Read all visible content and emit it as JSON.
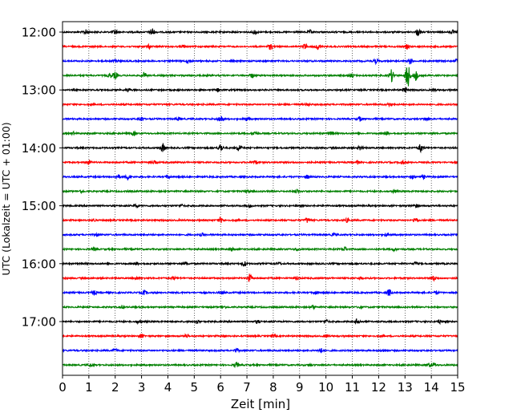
{
  "chart_data": {
    "type": "line",
    "title": "",
    "xlabel": "Zeit  [min]",
    "ylabel": "UTC (Lokalzeit = UTC + 01:00)",
    "xlim": [
      0,
      15
    ],
    "x_ticks": [
      "0",
      "1",
      "2",
      "3",
      "4",
      "5",
      "6",
      "7",
      "8",
      "9",
      "10",
      "11",
      "12",
      "13",
      "14",
      "15"
    ],
    "y_tick_labels": [
      "12:00",
      "13:00",
      "14:00",
      "15:00",
      "16:00",
      "17:00"
    ],
    "row_interval_minutes": 15,
    "grid": "vertical dotted at each minute",
    "color_cycle": [
      "#000000",
      "#ff0000",
      "#0000ff",
      "#008000"
    ],
    "series": [
      {
        "name": "12:00",
        "color": "#000000",
        "events": [
          [
            0.9,
            0.5
          ],
          [
            2.0,
            0.5
          ],
          [
            3.4,
            1.0
          ],
          [
            7.3,
            0.6
          ],
          [
            9.4,
            0.4
          ],
          [
            13.5,
            0.8
          ],
          [
            14.8,
            0.4
          ]
        ]
      },
      {
        "name": "12:15",
        "color": "#ff0000",
        "events": [
          [
            3.3,
            0.4
          ],
          [
            4.6,
            0.3
          ],
          [
            7.9,
            0.7
          ],
          [
            9.2,
            0.6
          ],
          [
            9.7,
            0.6
          ],
          [
            13.1,
            0.5
          ]
        ]
      },
      {
        "name": "12:30",
        "color": "#0000ff",
        "events": [
          [
            2.0,
            0.6
          ],
          [
            4.8,
            0.5
          ],
          [
            11.9,
            0.5
          ],
          [
            13.2,
            0.7
          ],
          [
            15.0,
            0.6
          ]
        ]
      },
      {
        "name": "12:45",
        "color": "#008000",
        "events": [
          [
            1.8,
            0.5
          ],
          [
            2.0,
            0.8
          ],
          [
            3.1,
            0.7
          ],
          [
            7.2,
            0.5
          ],
          [
            11.0,
            0.4
          ],
          [
            12.5,
            1.4
          ],
          [
            13.1,
            3.2
          ],
          [
            13.4,
            1.2
          ]
        ]
      },
      {
        "name": "13:00",
        "color": "#000000",
        "events": [
          [
            2.5,
            0.4
          ],
          [
            5.9,
            0.3
          ],
          [
            13.0,
            0.7
          ],
          [
            14.1,
            0.3
          ]
        ]
      },
      {
        "name": "13:15",
        "color": "#ff0000",
        "events": [
          [
            9.3,
            0.4
          ],
          [
            12.4,
            0.3
          ]
        ]
      },
      {
        "name": "13:30",
        "color": "#0000ff",
        "events": [
          [
            3.0,
            0.5
          ],
          [
            4.4,
            0.4
          ],
          [
            6.0,
            0.8
          ],
          [
            7.0,
            0.5
          ],
          [
            11.3,
            0.5
          ],
          [
            13.8,
            0.4
          ]
        ]
      },
      {
        "name": "13:45",
        "color": "#008000",
        "events": [
          [
            0.4,
            0.3
          ],
          [
            2.7,
            0.4
          ],
          [
            7.3,
            0.4
          ],
          [
            10.2,
            0.4
          ],
          [
            12.3,
            0.4
          ]
        ]
      },
      {
        "name": "14:00",
        "color": "#000000",
        "events": [
          [
            3.8,
            1.0
          ],
          [
            6.0,
            0.9
          ],
          [
            6.7,
            0.8
          ],
          [
            11.3,
            0.5
          ],
          [
            13.6,
            0.9
          ]
        ]
      },
      {
        "name": "14:15",
        "color": "#ff0000",
        "events": [
          [
            1.0,
            0.5
          ],
          [
            3.5,
            0.4
          ],
          [
            7.3,
            0.4
          ],
          [
            11.2,
            0.4
          ],
          [
            12.9,
            0.4
          ]
        ]
      },
      {
        "name": "14:30",
        "color": "#0000ff",
        "events": [
          [
            2.1,
            0.5
          ],
          [
            2.5,
            0.7
          ],
          [
            4.0,
            0.4
          ],
          [
            9.3,
            0.4
          ],
          [
            13.3,
            0.4
          ],
          [
            13.7,
            0.4
          ]
        ]
      },
      {
        "name": "14:45",
        "color": "#008000",
        "events": [
          [
            0.7,
            0.3
          ],
          [
            7.0,
            0.3
          ],
          [
            8.9,
            0.4
          ],
          [
            12.6,
            0.3
          ]
        ]
      },
      {
        "name": "15:00",
        "color": "#000000",
        "events": [
          [
            2.8,
            0.4
          ],
          [
            4.5,
            0.3
          ],
          [
            7.1,
            0.3
          ],
          [
            13.4,
            0.4
          ]
        ]
      },
      {
        "name": "15:15",
        "color": "#ff0000",
        "events": [
          [
            1.2,
            0.3
          ],
          [
            6.0,
            0.6
          ],
          [
            9.3,
            0.6
          ],
          [
            10.8,
            0.4
          ],
          [
            13.4,
            0.6
          ]
        ]
      },
      {
        "name": "15:30",
        "color": "#0000ff",
        "events": [
          [
            1.3,
            0.3
          ],
          [
            5.3,
            0.3
          ],
          [
            10.3,
            0.3
          ],
          [
            12.3,
            0.3
          ]
        ]
      },
      {
        "name": "15:45",
        "color": "#008000",
        "events": [
          [
            1.2,
            0.3
          ],
          [
            6.4,
            0.4
          ],
          [
            8.9,
            0.3
          ],
          [
            10.7,
            0.5
          ],
          [
            12.6,
            0.3
          ]
        ]
      },
      {
        "name": "16:00",
        "color": "#000000",
        "events": [
          [
            2.8,
            0.3
          ],
          [
            4.7,
            0.3
          ],
          [
            6.9,
            0.6
          ],
          [
            8.2,
            0.3
          ],
          [
            13.4,
            0.4
          ]
        ]
      },
      {
        "name": "16:15",
        "color": "#ff0000",
        "events": [
          [
            2.8,
            0.3
          ],
          [
            4.2,
            0.3
          ],
          [
            7.1,
            0.9
          ],
          [
            8.9,
            0.4
          ],
          [
            11.3,
            0.3
          ],
          [
            14.1,
            0.5
          ]
        ]
      },
      {
        "name": "16:30",
        "color": "#0000ff",
        "events": [
          [
            1.2,
            0.5
          ],
          [
            3.1,
            0.5
          ],
          [
            6.1,
            0.3
          ],
          [
            9.6,
            0.4
          ],
          [
            12.4,
            0.8
          ],
          [
            14.2,
            0.4
          ]
        ]
      },
      {
        "name": "16:45",
        "color": "#008000",
        "events": [
          [
            2.3,
            0.3
          ],
          [
            6.1,
            0.3
          ],
          [
            9.5,
            0.4
          ],
          [
            11.3,
            0.3
          ]
        ]
      },
      {
        "name": "17:00",
        "color": "#000000",
        "events": [
          [
            2.9,
            0.4
          ],
          [
            5.1,
            0.4
          ],
          [
            7.4,
            0.4
          ],
          [
            10.0,
            0.4
          ],
          [
            11.2,
            0.7
          ],
          [
            14.3,
            0.4
          ]
        ]
      },
      {
        "name": "17:15",
        "color": "#ff0000",
        "events": [
          [
            3.0,
            0.4
          ],
          [
            4.7,
            0.4
          ],
          [
            6.1,
            0.3
          ],
          [
            8.0,
            0.3
          ],
          [
            10.0,
            0.3
          ]
        ]
      },
      {
        "name": "17:30",
        "color": "#0000ff",
        "events": [
          [
            2.0,
            0.4
          ],
          [
            6.6,
            0.4
          ],
          [
            9.8,
            0.5
          ],
          [
            12.2,
            0.3
          ]
        ]
      },
      {
        "name": "17:45",
        "color": "#008000",
        "events": [
          [
            1.1,
            0.3
          ],
          [
            6.6,
            0.6
          ],
          [
            9.4,
            0.3
          ],
          [
            13.9,
            0.4
          ],
          [
            14.1,
            0.4
          ]
        ]
      }
    ]
  }
}
